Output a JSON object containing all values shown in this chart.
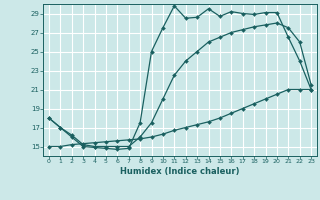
{
  "title": "",
  "xlabel": "Humidex (Indice chaleur)",
  "ylabel": "",
  "bg_color": "#cce8e8",
  "line_color": "#1a6060",
  "grid_color": "#ffffff",
  "xlim": [
    -0.5,
    23.5
  ],
  "ylim": [
    14.0,
    30.0
  ],
  "yticks": [
    15,
    17,
    19,
    21,
    23,
    25,
    27,
    29
  ],
  "xticks": [
    0,
    1,
    2,
    3,
    4,
    5,
    6,
    7,
    8,
    9,
    10,
    11,
    12,
    13,
    14,
    15,
    16,
    17,
    18,
    19,
    20,
    21,
    22,
    23
  ],
  "line1_x": [
    0,
    1,
    2,
    3,
    4,
    5,
    6,
    7,
    8,
    9,
    10,
    11,
    12,
    13,
    14,
    15,
    16,
    17,
    18,
    19,
    20,
    21,
    22,
    23
  ],
  "line1_y": [
    18.0,
    17.0,
    16.0,
    15.0,
    14.9,
    14.8,
    14.7,
    14.8,
    17.5,
    25.0,
    27.5,
    29.8,
    28.5,
    28.6,
    29.5,
    28.7,
    29.2,
    29.0,
    28.9,
    29.1,
    29.1,
    26.5,
    24.0,
    21.0
  ],
  "line2_x": [
    0,
    1,
    2,
    3,
    4,
    5,
    6,
    7,
    8,
    9,
    10,
    11,
    12,
    13,
    14,
    15,
    16,
    17,
    18,
    19,
    20,
    21,
    22,
    23
  ],
  "line2_y": [
    18.0,
    17.0,
    16.2,
    15.2,
    15.0,
    15.0,
    15.0,
    15.0,
    16.0,
    17.5,
    20.0,
    22.5,
    24.0,
    25.0,
    26.0,
    26.5,
    27.0,
    27.3,
    27.6,
    27.8,
    28.0,
    27.5,
    26.0,
    21.5
  ],
  "line3_x": [
    0,
    1,
    2,
    3,
    4,
    5,
    6,
    7,
    8,
    9,
    10,
    11,
    12,
    13,
    14,
    15,
    16,
    17,
    18,
    19,
    20,
    21,
    22,
    23
  ],
  "line3_y": [
    15.0,
    15.0,
    15.2,
    15.3,
    15.4,
    15.5,
    15.6,
    15.7,
    15.8,
    16.0,
    16.3,
    16.7,
    17.0,
    17.3,
    17.6,
    18.0,
    18.5,
    19.0,
    19.5,
    20.0,
    20.5,
    21.0,
    21.0,
    21.0
  ]
}
